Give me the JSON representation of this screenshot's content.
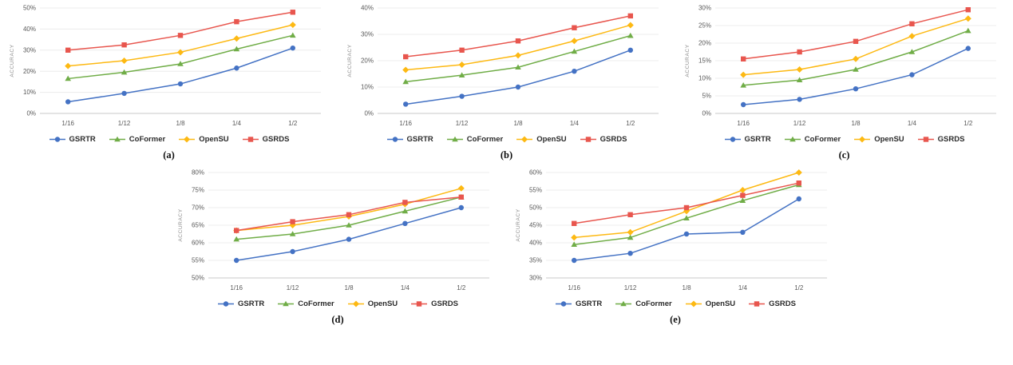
{
  "figure": {
    "ylabel": "ACCURACY",
    "categories": [
      "1/16",
      "1/12",
      "1/8",
      "1/4",
      "1/2"
    ],
    "legend": [
      {
        "name": "GSRTR",
        "color": "#4472c4",
        "marker": "circle"
      },
      {
        "name": "CoFormer",
        "color": "#70ad47",
        "marker": "triangle"
      },
      {
        "name": "OpenSU",
        "color": "#fdb913",
        "marker": "diamond"
      },
      {
        "name": "GSRDS",
        "color": "#e8564e",
        "marker": "square"
      }
    ]
  },
  "chart_data": [
    {
      "type": "line",
      "caption": "(a)",
      "ylabel": "ACCURACY",
      "categories": [
        "1/16",
        "1/12",
        "1/8",
        "1/4",
        "1/2"
      ],
      "ylim": [
        0,
        50
      ],
      "ystep": 10,
      "grid": true,
      "legend_position": "bottom",
      "series": [
        {
          "name": "GSRTR",
          "values": [
            5.5,
            9.5,
            14,
            21.5,
            31
          ]
        },
        {
          "name": "CoFormer",
          "values": [
            16.5,
            19.5,
            23.5,
            30.5,
            37
          ]
        },
        {
          "name": "OpenSU",
          "values": [
            22.5,
            25,
            29,
            35.5,
            42
          ]
        },
        {
          "name": "GSRDS",
          "values": [
            30,
            32.5,
            37,
            43.5,
            48
          ]
        }
      ]
    },
    {
      "type": "line",
      "caption": "(b)",
      "ylabel": "ACCURACY",
      "categories": [
        "1/16",
        "1/12",
        "1/8",
        "1/4",
        "1/2"
      ],
      "ylim": [
        0,
        40
      ],
      "ystep": 10,
      "grid": true,
      "legend_position": "bottom",
      "series": [
        {
          "name": "GSRTR",
          "values": [
            3.5,
            6.5,
            10,
            16,
            24
          ]
        },
        {
          "name": "CoFormer",
          "values": [
            12,
            14.5,
            17.5,
            23.5,
            29.5
          ]
        },
        {
          "name": "OpenSU",
          "values": [
            16.5,
            18.5,
            22,
            27.5,
            33.5
          ]
        },
        {
          "name": "GSRDS",
          "values": [
            21.5,
            24,
            27.5,
            32.5,
            37
          ]
        }
      ]
    },
    {
      "type": "line",
      "caption": "(c)",
      "ylabel": "ACCURACY",
      "categories": [
        "1/16",
        "1/12",
        "1/8",
        "1/4",
        "1/2"
      ],
      "ylim": [
        0,
        30
      ],
      "ystep": 5,
      "grid": true,
      "legend_position": "bottom",
      "series": [
        {
          "name": "GSRTR",
          "values": [
            2.5,
            4,
            7,
            11,
            18.5
          ]
        },
        {
          "name": "CoFormer",
          "values": [
            8,
            9.5,
            12.5,
            17.5,
            23.5
          ]
        },
        {
          "name": "OpenSU",
          "values": [
            11,
            12.5,
            15.5,
            22,
            27
          ]
        },
        {
          "name": "GSRDS",
          "values": [
            15.5,
            17.5,
            20.5,
            25.5,
            29.5
          ]
        }
      ]
    },
    {
      "type": "line",
      "caption": "(d)",
      "ylabel": "ACCURACY",
      "categories": [
        "1/16",
        "1/12",
        "1/8",
        "1/4",
        "1/2"
      ],
      "ylim": [
        50,
        80
      ],
      "ystep": 5,
      "grid": true,
      "legend_position": "bottom",
      "series": [
        {
          "name": "GSRTR",
          "values": [
            55,
            57.5,
            61,
            65.5,
            70
          ]
        },
        {
          "name": "CoFormer",
          "values": [
            61,
            62.5,
            65,
            69,
            73
          ]
        },
        {
          "name": "OpenSU",
          "values": [
            63.5,
            65,
            67.5,
            71,
            75.5
          ]
        },
        {
          "name": "GSRDS",
          "values": [
            63.5,
            66,
            68,
            71.5,
            73
          ]
        }
      ]
    },
    {
      "type": "line",
      "caption": "(e)",
      "ylabel": "ACCURACY",
      "categories": [
        "1/16",
        "1/12",
        "1/8",
        "1/4",
        "1/2"
      ],
      "ylim": [
        30,
        60
      ],
      "ystep": 5,
      "grid": true,
      "legend_position": "bottom",
      "series": [
        {
          "name": "GSRTR",
          "values": [
            35,
            37,
            42.5,
            43,
            52.5
          ]
        },
        {
          "name": "CoFormer",
          "values": [
            39.5,
            41.5,
            47,
            52,
            56.5
          ]
        },
        {
          "name": "OpenSU",
          "values": [
            41.5,
            43,
            49,
            55,
            60
          ]
        },
        {
          "name": "GSRDS",
          "values": [
            45.5,
            48,
            50,
            53.5,
            57
          ]
        }
      ]
    }
  ]
}
